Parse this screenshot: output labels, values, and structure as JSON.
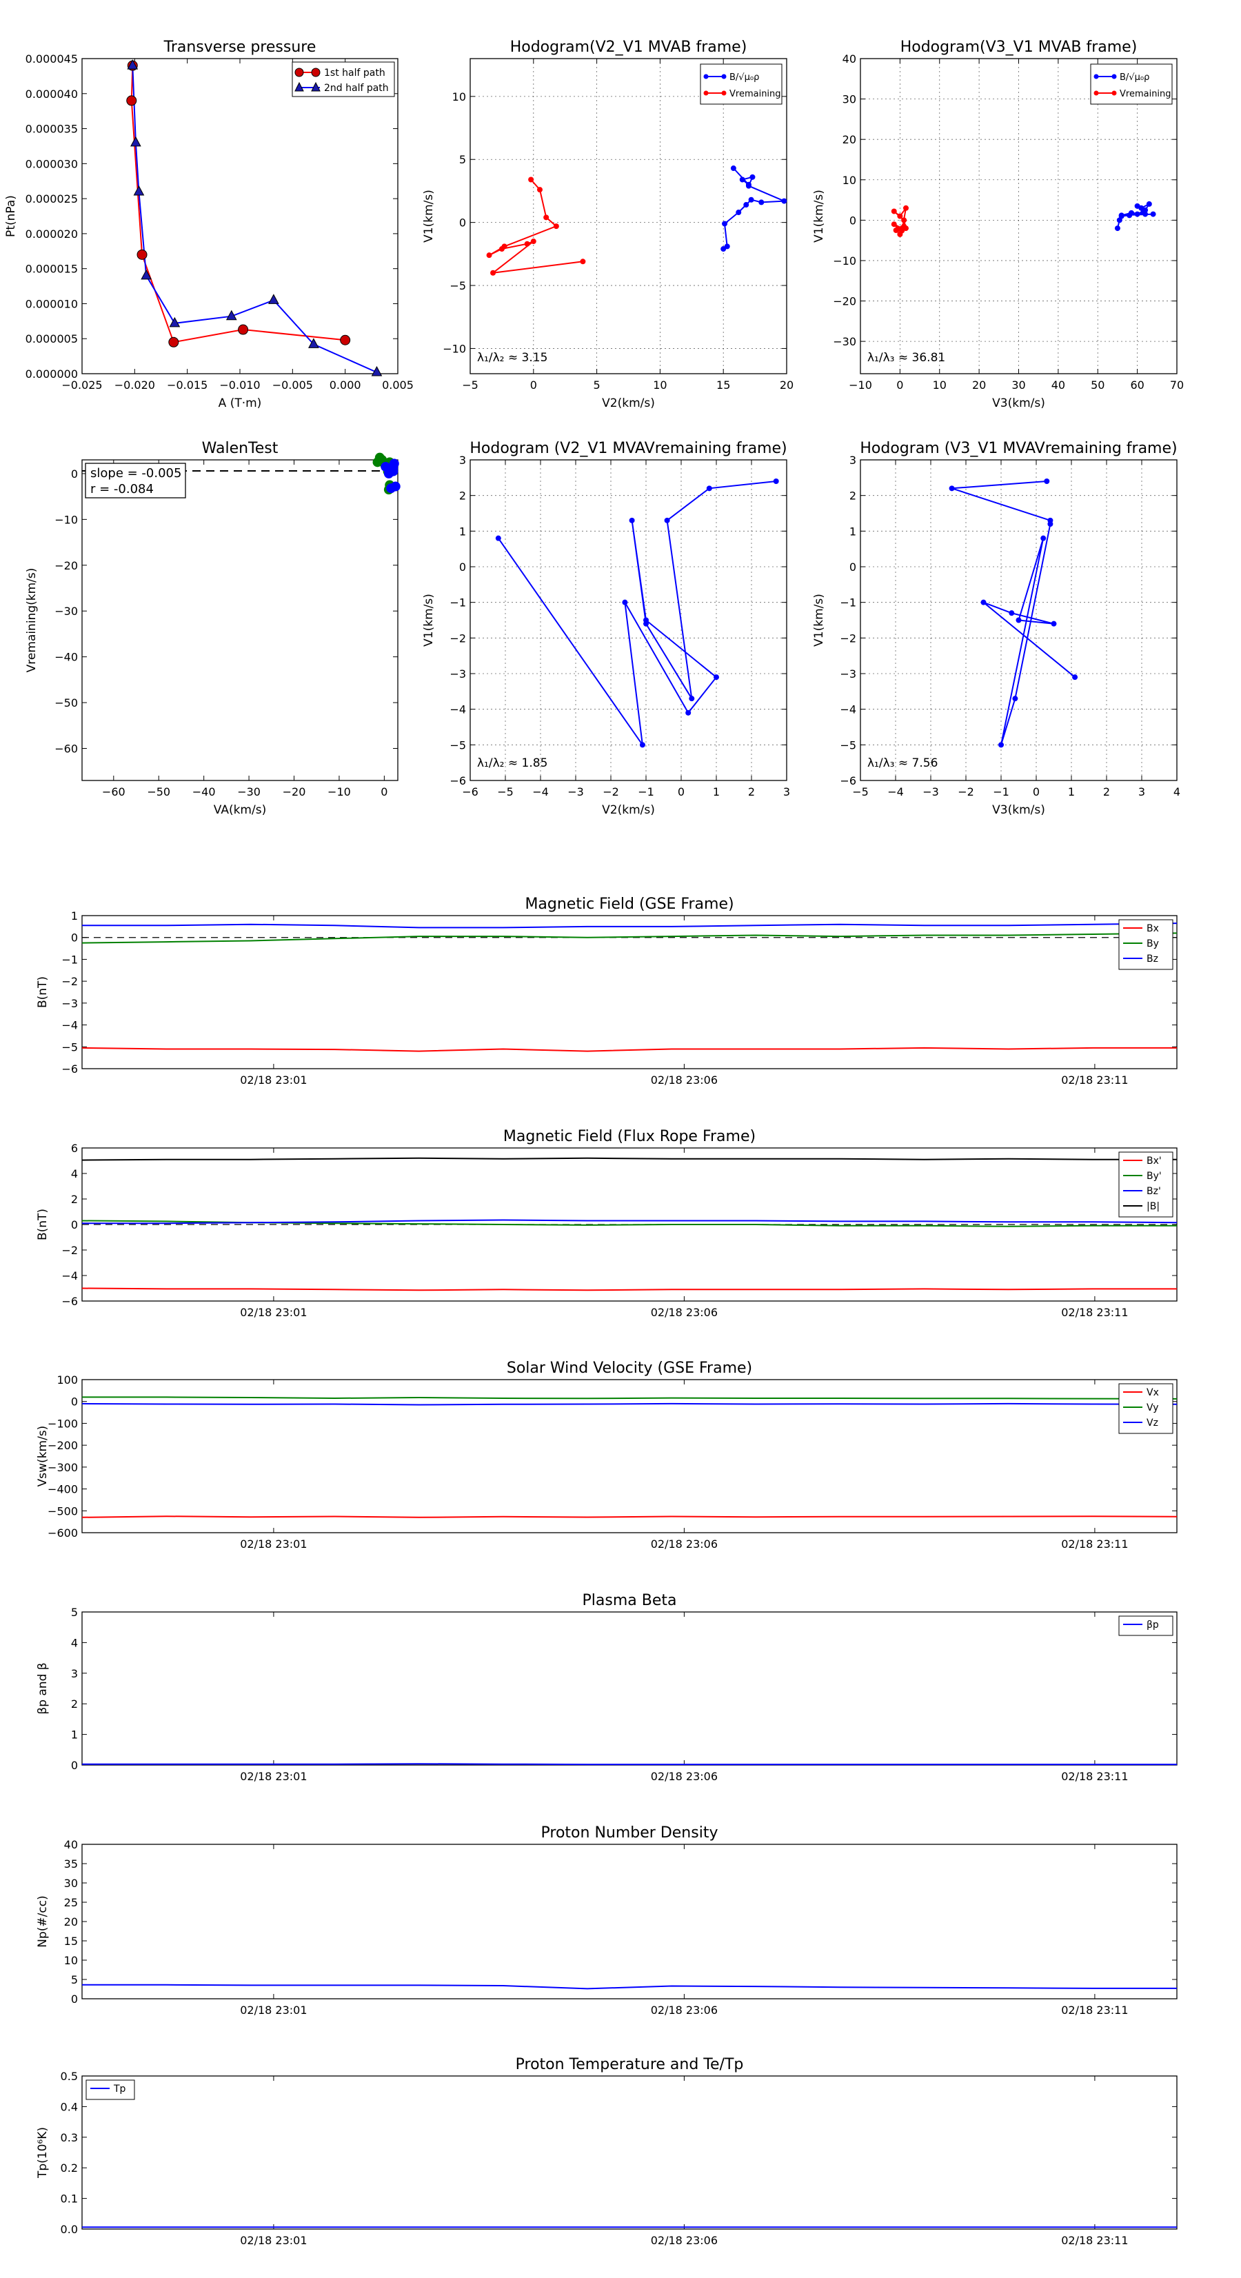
{
  "figure": {
    "panels": [
      {
        "title": "Transverse pressure",
        "xlabel": "A (T·m)",
        "ylabel": "Pt(nPa)",
        "xlim": [
          -0.025,
          0.005
        ],
        "ylim": [
          0,
          4.5e-05
        ],
        "xticks": [
          "−0.025",
          "−0.020",
          "−0.015",
          "−0.010",
          "−0.005",
          "0.000",
          "0.005"
        ],
        "yticks": [
          "0.000000",
          "0.000005",
          "0.000010",
          "0.000015",
          "0.000020",
          "0.000025",
          "0.000030",
          "0.000035",
          "0.000040",
          "0.000045"
        ],
        "legend": [
          "1st half path",
          "2nd half path"
        ]
      },
      {
        "title": "Hodogram(V2_V1 MVAB frame)",
        "xlabel": "V2(km/s)",
        "ylabel": "V1(km/s)",
        "xlim": [
          -5,
          20
        ],
        "ylim": [
          -12,
          13
        ],
        "xticks": [
          "−5",
          "0",
          "5",
          "10",
          "15",
          "20"
        ],
        "yticks": [
          "−10",
          "−5",
          "0",
          "5",
          "10"
        ],
        "legend": [
          "B/√μ₀ρ",
          "Vremaining"
        ],
        "annotation": "λ₁/λ₂ ≈ 3.15"
      },
      {
        "title": "Hodogram(V3_V1 MVAB frame)",
        "xlabel": "V3(km/s)",
        "ylabel": "V1(km/s)",
        "xlim": [
          -10,
          70
        ],
        "ylim": [
          -38,
          40
        ],
        "xticks": [
          "−10",
          "0",
          "10",
          "20",
          "30",
          "40",
          "50",
          "60",
          "70"
        ],
        "yticks": [
          "−30",
          "−20",
          "−10",
          "0",
          "10",
          "20",
          "30",
          "40"
        ],
        "legend": [
          "B/√μ₀ρ",
          "Vremaining"
        ],
        "annotation": "λ₁/λ₃ ≈ 36.81"
      },
      {
        "title": "WalenTest",
        "xlabel": "VA(km/s)",
        "ylabel": "Vremaining(km/s)",
        "xlim": [
          -67,
          3
        ],
        "ylim": [
          -67,
          3
        ],
        "xticks": [
          "−60",
          "−50",
          "−40",
          "−30",
          "−20",
          "−10",
          "0"
        ],
        "yticks": [
          "−60",
          "−50",
          "−40",
          "−30",
          "−20",
          "−10",
          "0"
        ],
        "box_lines": [
          "slope = -0.005",
          "r = -0.084"
        ]
      },
      {
        "title": "Hodogram (V2_V1 MVAVremaining frame)",
        "xlabel": "V2(km/s)",
        "ylabel": "V1(km/s)",
        "xlim": [
          -6,
          3
        ],
        "ylim": [
          -6,
          3
        ],
        "xticks": [
          "−6",
          "−5",
          "−4",
          "−3",
          "−2",
          "−1",
          "0",
          "1",
          "2",
          "3"
        ],
        "yticks": [
          "−6",
          "−5",
          "−4",
          "−3",
          "−2",
          "−1",
          "0",
          "1",
          "2",
          "3"
        ],
        "annotation": "λ₁/λ₂ ≈ 1.85"
      },
      {
        "title": "Hodogram (V3_V1 MVAVremaining frame)",
        "xlabel": "V3(km/s)",
        "ylabel": "V1(km/s)",
        "xlim": [
          -5,
          4
        ],
        "ylim": [
          -6,
          3
        ],
        "xticks": [
          "−5",
          "−4",
          "−3",
          "−2",
          "−1",
          "0",
          "1",
          "2",
          "3",
          "4"
        ],
        "yticks": [
          "−6",
          "−5",
          "−4",
          "−3",
          "−2",
          "−1",
          "0",
          "1",
          "2",
          "3"
        ],
        "annotation": "λ₁/λ₃ ≈ 7.56"
      }
    ],
    "timeseries": [
      {
        "title": "Magnetic Field (GSE Frame)",
        "ylabel": "B(nT)",
        "ylim": [
          -6,
          1
        ],
        "yticks": [
          "−6",
          "−5",
          "−4",
          "−3",
          "−2",
          "−1",
          "0",
          "1"
        ],
        "legend": [
          "Bx",
          "By",
          "Bz"
        ],
        "xticks": [
          "02/18 23:01",
          "02/18 23:06",
          "02/18 23:11"
        ]
      },
      {
        "title": "Magnetic Field (Flux Rope Frame)",
        "ylabel": "B(nT)",
        "ylim": [
          -6,
          6
        ],
        "yticks": [
          "−6",
          "−4",
          "−2",
          "0",
          "2",
          "4",
          "6"
        ],
        "legend": [
          "Bx'",
          "By'",
          "Bz'",
          "|B|"
        ],
        "xticks": [
          "02/18 23:01",
          "02/18 23:06",
          "02/18 23:11"
        ]
      },
      {
        "title": "Solar Wind Velocity (GSE Frame)",
        "ylabel": "Vsw(km/s)",
        "ylim": [
          -600,
          100
        ],
        "yticks": [
          "−600",
          "−500",
          "−400",
          "−300",
          "−200",
          "−100",
          "0",
          "100"
        ],
        "legend": [
          "Vx",
          "Vy",
          "Vz"
        ],
        "xticks": [
          "02/18 23:01",
          "02/18 23:06",
          "02/18 23:11"
        ]
      },
      {
        "title": "Plasma Beta",
        "ylabel": "βp and β",
        "ylim": [
          0,
          5
        ],
        "yticks": [
          "0",
          "1",
          "2",
          "3",
          "4",
          "5"
        ],
        "legend": [
          "βp"
        ],
        "xticks": [
          "02/18 23:01",
          "02/18 23:06",
          "02/18 23:11"
        ]
      },
      {
        "title": "Proton Number Density",
        "ylabel": "Np(#/cc)",
        "ylim": [
          0,
          40
        ],
        "yticks": [
          "0",
          "5",
          "10",
          "15",
          "20",
          "25",
          "30",
          "35",
          "40"
        ],
        "xticks": [
          "02/18 23:01",
          "02/18 23:06",
          "02/18 23:11"
        ]
      },
      {
        "title": "Proton Temperature and Te/Tp",
        "ylabel": "Tp(10⁶K)",
        "ylim": [
          0,
          0.5
        ],
        "yticks": [
          "0.0",
          "0.1",
          "0.2",
          "0.3",
          "0.4",
          "0.5"
        ],
        "legend": [
          "Tp"
        ],
        "xticks": [
          "02/18 23:01",
          "02/18 23:06",
          "02/18 23:11"
        ]
      }
    ]
  },
  "colors": {
    "red": "#ff0000",
    "green": "#008000",
    "blue": "#0000ff",
    "black": "#000000",
    "marker_red": "#cc0000",
    "marker_blue": "#1a1aaa"
  },
  "chart_data": [
    {
      "type": "line",
      "series": [
        {
          "name": "1st half path",
          "x": [
            0.0,
            -0.0097,
            -0.0163,
            -0.0193,
            -0.0203,
            -0.0202
          ],
          "y": [
            4.8e-06,
            6.3e-06,
            4.5e-06,
            1.7e-05,
            3.9e-05,
            4.4e-05
          ]
        },
        {
          "name": "2nd half path",
          "x": [
            -0.0202,
            -0.0199,
            -0.0196,
            -0.0189,
            -0.0162,
            -0.0108,
            -0.0068,
            -0.003,
            0.003
          ],
          "y": [
            4.4e-05,
            3.3e-05,
            2.6e-05,
            1.4e-05,
            7.2e-06,
            8.2e-06,
            1.05e-05,
            4.2e-06,
            2e-07
          ]
        }
      ]
    },
    {
      "type": "line",
      "series": [
        {
          "name": "B/√μ₀ρ",
          "x": [
            15.0,
            15.3,
            15.1,
            16.2,
            16.8,
            17.2,
            18.0,
            19.8,
            17.0,
            17.3,
            16.5,
            17.0,
            15.8
          ],
          "y": [
            -2.1,
            -1.9,
            -0.1,
            0.8,
            1.4,
            1.8,
            1.6,
            1.7,
            2.9,
            3.6,
            3.4,
            3.0,
            4.3
          ]
        },
        {
          "name": "Vremaining",
          "x": [
            3.9,
            -3.2,
            0.0,
            -0.5,
            -2.5,
            -3.5,
            -2.3,
            1.8,
            1.0,
            0.5,
            -0.2
          ],
          "y": [
            -3.1,
            -4.0,
            -1.5,
            -1.7,
            -2.1,
            -2.6,
            -1.9,
            -0.3,
            0.4,
            2.6,
            3.4
          ]
        }
      ]
    },
    {
      "type": "line",
      "series": [
        {
          "name": "B/√μ₀ρ",
          "x": [
            55.0,
            55.5,
            56.0,
            58.0,
            60.0,
            62.0,
            63.0,
            61.0,
            60.0,
            61.5,
            62.0,
            58.5,
            56.0,
            64.0
          ],
          "y": [
            -2.0,
            0.0,
            1.0,
            1.2,
            1.5,
            2.5,
            4.0,
            3.0,
            3.5,
            2.0,
            1.5,
            1.8,
            1.2,
            1.5
          ]
        },
        {
          "name": "Vremaining",
          "x": [
            1.0,
            -1.0,
            0.0,
            0.5,
            -1.5,
            -0.5,
            0.5,
            1.5,
            0.0,
            -1.5,
            1.0,
            1.5
          ],
          "y": [
            -1.5,
            -2.5,
            -3.5,
            -2.0,
            -1.0,
            -2.2,
            -2.6,
            3.0,
            1.0,
            2.2,
            0.0,
            -2.0
          ]
        }
      ]
    },
    {
      "type": "scatter",
      "series": [
        {
          "name": "",
          "x": [
            -1.5,
            -1.0,
            0.2,
            -0.5,
            1.2,
            0.8,
            1.5,
            1.0,
            2.0,
            1.2
          ],
          "y": [
            2.5,
            3.5,
            1.8,
            3.0,
            2.5,
            0.5,
            -3.0,
            -3.5,
            1.0,
            -2.5
          ]
        },
        {
          "name": "",
          "x": [
            1.0,
            2.0,
            2.5,
            1.0,
            0.3,
            1.5,
            2.2,
            2.0
          ],
          "y": [
            0.8,
            1.2,
            -2.8,
            0.0,
            1.5,
            -3.2,
            2.2,
            0.5
          ]
        }
      ],
      "regression_line": {
        "x": [
          -67,
          3
        ],
        "y": [
          0.6,
          0.6
        ]
      }
    },
    {
      "type": "line",
      "series": [
        {
          "name": "",
          "x": [
            2.7,
            0.8,
            -0.4,
            0.3,
            -1.0,
            -1.4,
            -1.0,
            1.0,
            0.2,
            -1.6,
            -1.1,
            -5.2
          ],
          "y": [
            2.4,
            2.2,
            1.3,
            -3.7,
            -1.6,
            1.3,
            -1.5,
            -3.1,
            -4.1,
            -1.0,
            -5.0,
            0.8
          ]
        }
      ]
    },
    {
      "type": "line",
      "series": [
        {
          "name": "",
          "x": [
            0.3,
            -2.4,
            0.4,
            0.4,
            -0.6,
            -1.0,
            0.2,
            -0.5,
            0.5,
            -0.7,
            -1.5,
            1.1
          ],
          "y": [
            2.4,
            2.2,
            1.3,
            1.2,
            -3.7,
            -5.0,
            0.8,
            -1.5,
            -1.6,
            -1.3,
            -1.0,
            -3.1
          ]
        }
      ]
    },
    {
      "type": "line",
      "x": [
        0,
        1,
        2,
        3,
        4,
        5,
        6,
        7,
        8,
        9,
        10,
        11,
        12,
        13
      ],
      "xticks": [
        "02/18 23:01",
        "02/18 23:06",
        "02/18 23:11"
      ],
      "series": [
        {
          "name": "Bx",
          "values": [
            -5.05,
            -5.1,
            -5.1,
            -5.12,
            -5.2,
            -5.1,
            -5.2,
            -5.1,
            -5.1,
            -5.1,
            -5.05,
            -5.1,
            -5.05,
            -5.05
          ]
        },
        {
          "name": "By",
          "values": [
            -0.25,
            -0.2,
            -0.15,
            -0.05,
            0.05,
            0.05,
            0.0,
            0.05,
            0.1,
            0.05,
            0.1,
            0.1,
            0.15,
            0.2
          ]
        },
        {
          "name": "Bz",
          "values": [
            0.55,
            0.55,
            0.6,
            0.55,
            0.45,
            0.45,
            0.5,
            0.5,
            0.55,
            0.6,
            0.55,
            0.55,
            0.6,
            0.65
          ]
        }
      ]
    },
    {
      "type": "line",
      "x": [
        0,
        1,
        2,
        3,
        4,
        5,
        6,
        7,
        8,
        9,
        10,
        11,
        12,
        13
      ],
      "xticks": [
        "02/18 23:01",
        "02/18 23:06",
        "02/18 23:11"
      ],
      "series": [
        {
          "name": "Bx'",
          "values": [
            -5.0,
            -5.05,
            -5.05,
            -5.1,
            -5.15,
            -5.1,
            -5.15,
            -5.1,
            -5.1,
            -5.1,
            -5.05,
            -5.1,
            -5.05,
            -5.05
          ]
        },
        {
          "name": "By'",
          "values": [
            0.3,
            0.25,
            0.15,
            0.1,
            0.05,
            0.0,
            -0.05,
            0.0,
            0.0,
            -0.1,
            -0.1,
            -0.15,
            -0.1,
            -0.1
          ]
        },
        {
          "name": "Bz'",
          "values": [
            0.1,
            0.1,
            0.15,
            0.2,
            0.3,
            0.35,
            0.3,
            0.3,
            0.3,
            0.25,
            0.25,
            0.2,
            0.2,
            0.15
          ]
        },
        {
          "name": "|B|",
          "values": [
            5.05,
            5.1,
            5.1,
            5.15,
            5.2,
            5.15,
            5.2,
            5.15,
            5.15,
            5.15,
            5.1,
            5.15,
            5.1,
            5.1
          ]
        }
      ]
    },
    {
      "type": "line",
      "x": [
        0,
        1,
        2,
        3,
        4,
        5,
        6,
        7,
        8,
        9,
        10,
        11,
        12,
        13
      ],
      "xticks": [
        "02/18 23:01",
        "02/18 23:06",
        "02/18 23:11"
      ],
      "series": [
        {
          "name": "Vx",
          "values": [
            -530,
            -525,
            -528,
            -526,
            -530,
            -527,
            -529,
            -526,
            -528,
            -527,
            -527,
            -526,
            -525,
            -527
          ]
        },
        {
          "name": "Vy",
          "values": [
            20,
            20,
            18,
            15,
            18,
            15,
            14,
            16,
            15,
            15,
            14,
            14,
            13,
            12
          ]
        },
        {
          "name": "Vz",
          "values": [
            -10,
            -12,
            -13,
            -12,
            -15,
            -13,
            -12,
            -10,
            -12,
            -11,
            -12,
            -10,
            -12,
            -13
          ]
        }
      ]
    },
    {
      "type": "line",
      "x": [
        0,
        1,
        2,
        3,
        4,
        5,
        6,
        7,
        8,
        9,
        10,
        11,
        12,
        13
      ],
      "xticks": [
        "02/18 23:01",
        "02/18 23:06",
        "02/18 23:11"
      ],
      "series": [
        {
          "name": "βp",
          "values": [
            0.03,
            0.03,
            0.03,
            0.03,
            0.04,
            0.03,
            0.02,
            0.02,
            0.02,
            0.02,
            0.02,
            0.02,
            0.02,
            0.02
          ]
        }
      ]
    },
    {
      "type": "line",
      "x": [
        0,
        1,
        2,
        3,
        4,
        5,
        6,
        7,
        8,
        9,
        10,
        11,
        12,
        13
      ],
      "xticks": [
        "02/18 23:01",
        "02/18 23:06",
        "02/18 23:11"
      ],
      "series": [
        {
          "name": "Np",
          "values": [
            3.6,
            3.6,
            3.5,
            3.5,
            3.5,
            3.4,
            2.6,
            3.3,
            3.2,
            3.0,
            2.9,
            2.8,
            2.7,
            2.7
          ]
        }
      ]
    },
    {
      "type": "line",
      "x": [
        0,
        1,
        2,
        3,
        4,
        5,
        6,
        7,
        8,
        9,
        10,
        11,
        12,
        13
      ],
      "xticks": [
        "02/18 23:01",
        "02/18 23:06",
        "02/18 23:11"
      ],
      "series": [
        {
          "name": "Tp",
          "values": [
            0.006,
            0.006,
            0.006,
            0.006,
            0.006,
            0.006,
            0.006,
            0.006,
            0.006,
            0.006,
            0.006,
            0.006,
            0.006,
            0.006
          ]
        }
      ]
    }
  ]
}
